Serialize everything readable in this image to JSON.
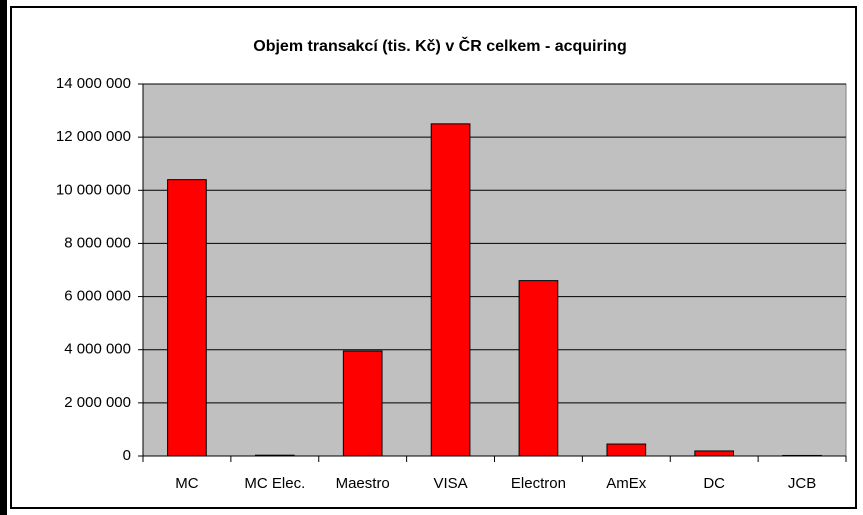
{
  "chart_data": {
    "type": "bar",
    "title": "Objem transakcí (tis. Kč) v ČR celkem - acquiring",
    "categories": [
      "MC",
      "MC Elec.",
      "Maestro",
      "VISA",
      "Electron",
      "AmEx",
      "DC",
      "JCB"
    ],
    "values": [
      10400000,
      30000,
      3950000,
      12500000,
      6600000,
      450000,
      190000,
      20000
    ],
    "color": "#ff0000",
    "ylim": [
      0,
      14000000
    ],
    "yticks": [
      {
        "value": 0,
        "label": "0"
      },
      {
        "value": 2000000,
        "label": "2 000 000"
      },
      {
        "value": 4000000,
        "label": "4 000 000"
      },
      {
        "value": 6000000,
        "label": "6 000 000"
      },
      {
        "value": 8000000,
        "label": "8 000 000"
      },
      {
        "value": 10000000,
        "label": "10 000 000"
      },
      {
        "value": 12000000,
        "label": "12 000 000"
      },
      {
        "value": 14000000,
        "label": "14 000 000"
      }
    ],
    "grid": true
  }
}
